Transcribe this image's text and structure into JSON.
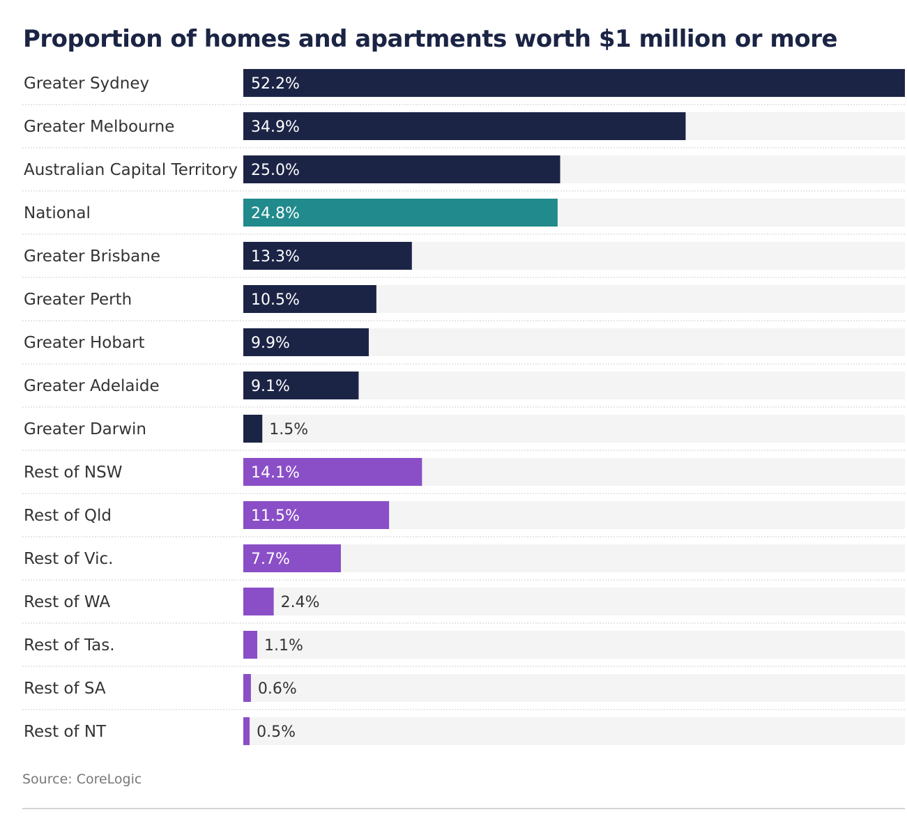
{
  "chart_data": {
    "type": "bar",
    "orientation": "horizontal",
    "title": "Proportion of homes and apartments worth $1 million or more",
    "source": "Source: CoreLogic",
    "xlim": [
      0,
      52.2
    ],
    "grid": false,
    "legend": "none",
    "colors": {
      "capital": "#1c2446",
      "national": "#218a8c",
      "regional": "#8a4fc7",
      "track": "#f4f4f4",
      "separator": "#cccccc"
    },
    "categories": [
      "Greater Sydney",
      "Greater Melbourne",
      "Australian Capital Territory",
      "National",
      "Greater Brisbane",
      "Greater Perth",
      "Greater Hobart",
      "Greater Adelaide",
      "Greater Darwin",
      "Rest of NSW",
      "Rest of Qld",
      "Rest of Vic.",
      "Rest of WA",
      "Rest of Tas.",
      "Rest of SA",
      "Rest of NT"
    ],
    "values": [
      52.2,
      34.9,
      25.0,
      24.8,
      13.3,
      10.5,
      9.9,
      9.1,
      1.5,
      14.1,
      11.5,
      7.7,
      2.4,
      1.1,
      0.6,
      0.5
    ],
    "value_labels": [
      "52.2%",
      "34.9%",
      "25.0%",
      "24.8%",
      "13.3%",
      "10.5%",
      "9.9%",
      "9.1%",
      "1.5%",
      "14.1%",
      "11.5%",
      "7.7%",
      "2.4%",
      "1.1%",
      "0.6%",
      "0.5%"
    ],
    "groups": [
      "capital",
      "capital",
      "capital",
      "national",
      "capital",
      "capital",
      "capital",
      "capital",
      "capital",
      "regional",
      "regional",
      "regional",
      "regional",
      "regional",
      "regional",
      "regional"
    ]
  }
}
